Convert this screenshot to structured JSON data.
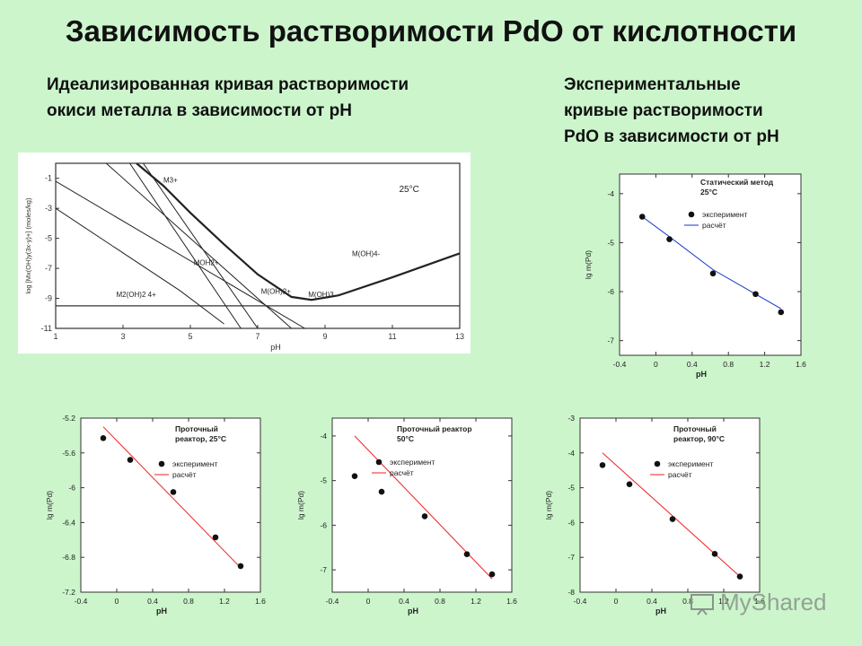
{
  "title": "Зависимость растворимости PdO от кислотности",
  "subtitle_left": [
    "Идеализированная кривая растворимости",
    "окиси металла в зависимости от pH"
  ],
  "subtitle_right": [
    "Экспериментальные",
    "кривые растворимости",
    "PdO в зависимости от pH"
  ],
  "watermark": "MyShared",
  "chart_data": [
    {
      "id": "ideal",
      "type": "line",
      "xlabel": "pH",
      "ylabel": "log [Mx(OH)y(3x-y)+] (moles/kg)",
      "xlim": [
        1,
        13
      ],
      "ylim": [
        -11,
        0
      ],
      "xticks": [
        "1",
        "3",
        "5",
        "7",
        "9",
        "11",
        "13"
      ],
      "yticks": [
        "-1",
        "-3",
        "-5",
        "-7",
        "-9",
        "-11"
      ],
      "temperature_label": "25°C",
      "baseline": -9.5,
      "species_labels": [
        {
          "text": "M3+",
          "x": 4.2,
          "y": -1.3
        },
        {
          "text": "MOH2+",
          "x": 5.1,
          "y": -6.8
        },
        {
          "text": "M(OH)2+",
          "x": 7.1,
          "y": -8.7
        },
        {
          "text": "M(OH)3",
          "x": 8.5,
          "y": -8.9
        },
        {
          "text": "M(OH)4-",
          "x": 9.8,
          "y": -6.2
        },
        {
          "text": "M2(OH)2 4+",
          "x": 2.8,
          "y": -8.9
        }
      ],
      "series": [
        {
          "values": [
            [
              3.4,
              0
            ],
            [
              4.2,
              -1.5
            ],
            [
              5.0,
              -3.3
            ],
            [
              6.0,
              -5.4
            ],
            [
              7.0,
              -7.4
            ],
            [
              8.0,
              -8.9
            ],
            [
              8.6,
              -9.1
            ],
            [
              9.4,
              -8.8
            ],
            [
              11.0,
              -7.6
            ],
            [
              13.0,
              -6.0
            ]
          ]
        },
        {
          "values": [
            [
              3.2,
              0
            ],
            [
              6.5,
              -11
            ]
          ]
        },
        {
          "values": [
            [
              1.0,
              -3.0
            ],
            [
              4.7,
              -8.5
            ],
            [
              6.0,
              -10.7
            ]
          ]
        },
        {
          "values": [
            [
              3.6,
              0
            ],
            [
              7.0,
              -11
            ]
          ]
        },
        {
          "values": [
            [
              2.5,
              0
            ],
            [
              8.0,
              -11
            ]
          ]
        },
        {
          "values": [
            [
              1.0,
              -1.2
            ],
            [
              8.4,
              -11
            ]
          ]
        }
      ]
    },
    {
      "id": "static",
      "type": "scatter",
      "annotation": [
        "Статический метод",
        "25°C"
      ],
      "legend": [
        "эксперимент",
        "расчёт"
      ],
      "xlabel": "pH",
      "ylabel": "lg m(Pd)",
      "xlim": [
        -0.4,
        1.6
      ],
      "ylim": [
        -7.3,
        -3.6
      ],
      "xticks": [
        "-0.4",
        "0",
        "0.4",
        "0.8",
        "1.2",
        "1.6"
      ],
      "yticks": [
        "-4",
        "-5",
        "-6",
        "-7"
      ],
      "line_color": "#1133cc",
      "points": [
        [
          -0.15,
          -4.47
        ],
        [
          0.15,
          -4.93
        ],
        [
          0.63,
          -5.63
        ],
        [
          1.1,
          -6.05
        ],
        [
          1.38,
          -6.42
        ]
      ],
      "fit": [
        [
          -0.15,
          -4.47
        ],
        [
          0.15,
          -4.88
        ],
        [
          0.63,
          -5.55
        ],
        [
          1.1,
          -6.05
        ],
        [
          1.38,
          -6.35
        ]
      ]
    },
    {
      "id": "flow25",
      "type": "scatter",
      "annotation": [
        "Проточный",
        "реактор, 25°C"
      ],
      "legend": [
        "эксперимент",
        "расчёт"
      ],
      "xlabel": "pH",
      "ylabel": "lg m(Pd)",
      "xlim": [
        -0.4,
        1.6
      ],
      "ylim": [
        -7.2,
        -5.2
      ],
      "xticks": [
        "-0.4",
        "0",
        "0.4",
        "0.8",
        "1.2",
        "1.6"
      ],
      "yticks": [
        "-5.2",
        "-5.6",
        "-6",
        "-6.4",
        "-6.8",
        "-7.2"
      ],
      "line_color": "#ee2222",
      "points": [
        [
          -0.15,
          -5.43
        ],
        [
          0.15,
          -5.68
        ],
        [
          0.63,
          -6.05
        ],
        [
          1.1,
          -6.57
        ],
        [
          1.38,
          -6.9
        ]
      ],
      "fit": [
        [
          -0.15,
          -5.3
        ],
        [
          1.38,
          -6.92
        ]
      ]
    },
    {
      "id": "flow50",
      "type": "scatter",
      "annotation": [
        "Проточный реактор",
        "50°C"
      ],
      "legend": [
        "эксперимент",
        "расчёт"
      ],
      "xlabel": "pH",
      "ylabel": "lg m(Pd)",
      "xlim": [
        -0.4,
        1.6
      ],
      "ylim": [
        -7.5,
        -3.6
      ],
      "xticks": [
        "-0.4",
        "0",
        "0.4",
        "0.8",
        "1.2",
        "1.6"
      ],
      "yticks": [
        "-4",
        "-5",
        "-6",
        "-7"
      ],
      "line_color": "#ee2222",
      "points": [
        [
          -0.15,
          -4.9
        ],
        [
          0.15,
          -5.25
        ],
        [
          0.63,
          -5.8
        ],
        [
          1.1,
          -6.65
        ],
        [
          1.38,
          -7.1
        ]
      ],
      "fit": [
        [
          -0.15,
          -4.0
        ],
        [
          1.38,
          -7.2
        ]
      ]
    },
    {
      "id": "flow90",
      "type": "scatter",
      "annotation": [
        "Проточный",
        "реактор, 90°C"
      ],
      "legend": [
        "эксперимент",
        "расчёт"
      ],
      "xlabel": "pH",
      "ylabel": "lg m(Pd)",
      "xlim": [
        -0.4,
        1.6
      ],
      "ylim": [
        -8,
        -3
      ],
      "xticks": [
        "-0.4",
        "0",
        "0.4",
        "0.8",
        "1.2",
        "1.6"
      ],
      "yticks": [
        "-3",
        "-4",
        "-5",
        "-6",
        "-7",
        "-8"
      ],
      "line_color": "#ee2222",
      "points": [
        [
          -0.15,
          -4.35
        ],
        [
          0.15,
          -4.9
        ],
        [
          0.63,
          -5.9
        ],
        [
          1.1,
          -6.9
        ],
        [
          1.38,
          -7.55
        ]
      ],
      "fit": [
        [
          -0.15,
          -4.0
        ],
        [
          1.38,
          -7.55
        ]
      ]
    }
  ]
}
